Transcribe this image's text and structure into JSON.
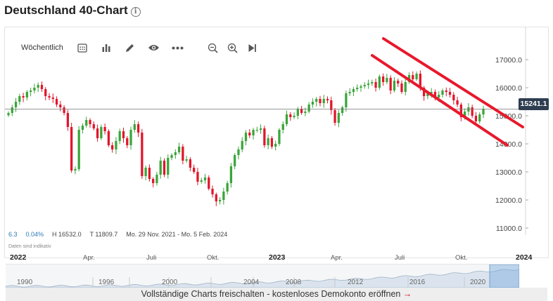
{
  "page": {
    "title": "Deutschland 40-Chart"
  },
  "toolbar": {
    "interval_label": "Wöchentlich",
    "icons": [
      "calendar-icon",
      "bar-chart-icon",
      "pencil-icon",
      "eye-icon",
      "more-icon",
      "zoom-out-icon",
      "zoom-in-icon",
      "play-icon"
    ]
  },
  "stats": {
    "change": "6.3",
    "change_pct": "0.04%",
    "high": "H 16532.0",
    "low": "T 11809.7",
    "range": "Mo. 29 Nov. 2021 - Mo. 5 Feb. 2024"
  },
  "disclaimer": "Daten sind indikativ",
  "current_price": "15241.1",
  "colors": {
    "up": "#3aa53a",
    "down": "#e2152b",
    "trend": "#e8192c",
    "price_tag": "#2e3d50"
  },
  "time_axis": [
    {
      "label": "2022",
      "bold": true
    },
    {
      "label": "Apr.",
      "bold": false
    },
    {
      "label": "Juli",
      "bold": false
    },
    {
      "label": "Okt.",
      "bold": false
    },
    {
      "label": "2023",
      "bold": true
    },
    {
      "label": "Apr.",
      "bold": false
    },
    {
      "label": "Juli",
      "bold": false
    },
    {
      "label": "Okt.",
      "bold": false
    },
    {
      "label": "2024",
      "bold": true
    }
  ],
  "navigator_years": [
    "1990",
    "1996",
    "2000",
    "2004",
    "2008",
    "2012",
    "2016",
    "2020"
  ],
  "cta": {
    "text": "Vollständige Charts freischalten - ",
    "link": "kostenloses Demokonto eröffnen",
    "arrow": "→"
  },
  "chart_data": {
    "type": "candlestick",
    "title": "Deutschland 40-Chart",
    "interval": "weekly",
    "ylim": [
      10500,
      17600
    ],
    "y_ticks": [
      "17000.0",
      "16000.0",
      "15000.0",
      "14000.0",
      "13000.0",
      "12000.0",
      "11000.0"
    ],
    "y_values": [
      17000,
      16000,
      15000,
      14000,
      13000,
      12000,
      11000
    ],
    "x_labels": [
      "2022",
      "Apr.",
      "Juli",
      "Okt.",
      "2023",
      "Apr.",
      "Juli",
      "Okt.",
      "2024"
    ],
    "current_price": 15241.1,
    "closes": [
      15100,
      15300,
      15500,
      15700,
      15650,
      15850,
      15900,
      16000,
      16100,
      15950,
      15700,
      15650,
      15600,
      15400,
      15300,
      15100,
      14600,
      13050,
      13100,
      14500,
      14650,
      14850,
      14700,
      14550,
      14200,
      14600,
      14450,
      13950,
      13800,
      14100,
      14450,
      14200,
      13950,
      14500,
      14700,
      14400,
      12850,
      13150,
      12750,
      12600,
      12900,
      13400,
      12900,
      13500,
      13600,
      13700,
      13900,
      13400,
      13450,
      13150,
      13000,
      12650,
      12700,
      12800,
      12400,
      12200,
      11950,
      12000,
      12300,
      12600,
      13200,
      13600,
      13800,
      14100,
      14400,
      14300,
      14500,
      14500,
      14550,
      13950,
      14200,
      13900,
      14000,
      14500,
      14700,
      15050,
      14950,
      15000,
      15250,
      15100,
      15150,
      15400,
      15500,
      15600,
      15450,
      15600,
      15550,
      15200,
      14750,
      15100,
      15300,
      15800,
      15850,
      15950,
      16000,
      16050,
      16100,
      16150,
      16200,
      16000,
      16400,
      16200,
      16350,
      15900,
      16250,
      16150,
      15850,
      16200,
      16450,
      16300,
      16500,
      16000,
      15700,
      15800,
      15850,
      15650,
      15750,
      15900,
      15850,
      15750,
      15550,
      15400,
      14950,
      15150,
      15300,
      15000,
      14800,
      15050,
      15241
    ]
  }
}
